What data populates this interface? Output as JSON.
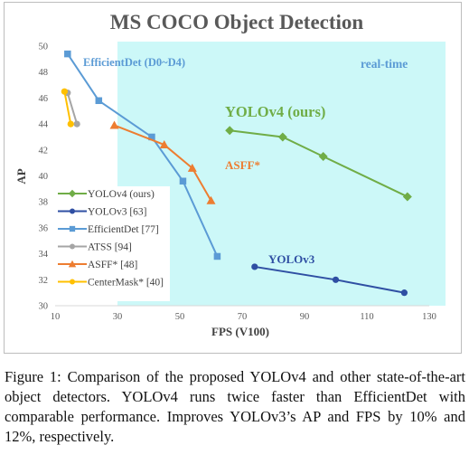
{
  "chart_data": {
    "type": "line",
    "title": "MS COCO Object Detection",
    "xlabel": "FPS (V100)",
    "ylabel": "AP",
    "xlim": [
      10,
      130
    ],
    "ylim": [
      30,
      50
    ],
    "xticks": [
      10,
      30,
      50,
      70,
      90,
      110,
      130
    ],
    "yticks": [
      30,
      32,
      34,
      36,
      38,
      40,
      42,
      44,
      46,
      48,
      50
    ],
    "grid": false,
    "legend_position": "bottom-left",
    "realtime_region": {
      "label": "real-time",
      "x_from": 30,
      "color": "#ccf8f8"
    },
    "series": [
      {
        "name": "YOLOv4 (ours)",
        "color": "#70ad47",
        "marker": "diamond",
        "points": [
          [
            66,
            43.5
          ],
          [
            83,
            43.0
          ],
          [
            96,
            41.5
          ],
          [
            123,
            38.4
          ]
        ]
      },
      {
        "name": "YOLOv3 [63]",
        "color": "#2f4fa3",
        "marker": "circle",
        "points": [
          [
            74,
            33.0
          ],
          [
            100,
            32.0
          ],
          [
            122,
            31.0
          ]
        ]
      },
      {
        "name": "EfficientDet [77]",
        "color": "#5b9bd5",
        "marker": "square",
        "points": [
          [
            14,
            49.4
          ],
          [
            24,
            45.8
          ],
          [
            41,
            43.0
          ],
          [
            51,
            39.6
          ],
          [
            62,
            33.8
          ]
        ]
      },
      {
        "name": "ATSS [94]",
        "color": "#a5a5a5",
        "marker": "circle",
        "points": [
          [
            14,
            46.4
          ],
          [
            17,
            44.0
          ]
        ]
      },
      {
        "name": "ASFF* [48]",
        "color": "#ed7d31",
        "marker": "triangle",
        "points": [
          [
            29,
            43.9
          ],
          [
            45,
            42.4
          ],
          [
            54,
            40.6
          ],
          [
            60,
            38.1
          ]
        ]
      },
      {
        "name": "CenterMask* [40]",
        "color": "#ffc000",
        "marker": "circle",
        "points": [
          [
            13,
            46.5
          ],
          [
            15,
            44.0
          ]
        ]
      }
    ],
    "annotations": [
      {
        "text": "EfficientDet (D0~D4)",
        "color": "#5b9bd5"
      },
      {
        "text": "real-time",
        "color": "#5b9bd5"
      },
      {
        "text": "YOLOv4 (ours)",
        "color": "#70ad47"
      },
      {
        "text": "ASFF*",
        "color": "#ed7d31"
      },
      {
        "text": "YOLOv3",
        "color": "#2f4fa3"
      }
    ]
  },
  "caption": "Figure 1: Comparison of the proposed YOLOv4 and other state-of-the-art object detectors. YOLOv4 runs twice faster than EfficientDet with comparable performance. Improves YOLOv3’s AP and FPS by 10% and 12%, respectively."
}
